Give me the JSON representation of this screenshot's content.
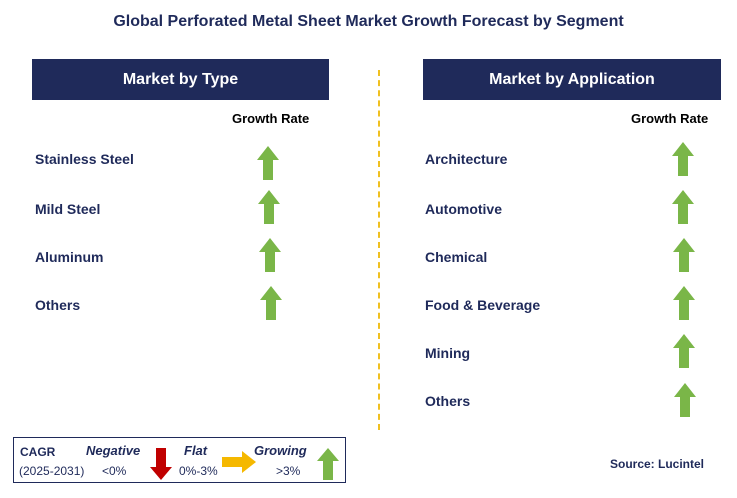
{
  "title": "Global Perforated Metal Sheet Market Growth Forecast by Segment",
  "type_panel": {
    "header": "Market by Type",
    "growth_label": "Growth Rate",
    "items": [
      "Stainless Steel",
      "Mild Steel",
      "Aluminum",
      "Others"
    ]
  },
  "application_panel": {
    "header": "Market by Application",
    "growth_label": "Growth Rate",
    "items": [
      "Architecture",
      "Automotive",
      "Chemical",
      "Food & Beverage",
      "Mining",
      "Others"
    ]
  },
  "legend": {
    "cagr": "CAGR",
    "period": "(2025-2031)",
    "negative": "Negative",
    "negative_range": "<0%",
    "flat": "Flat",
    "flat_range": "0%-3%",
    "growing": "Growing",
    "growing_range": ">3%"
  },
  "source": "Source: Lucintel",
  "colors": {
    "navy": "#1f2a5a",
    "growing_arrow": "#7ab648",
    "negative_arrow": "#c00000",
    "flat_arrow": "#f5b800",
    "divider": "#f0c020"
  }
}
